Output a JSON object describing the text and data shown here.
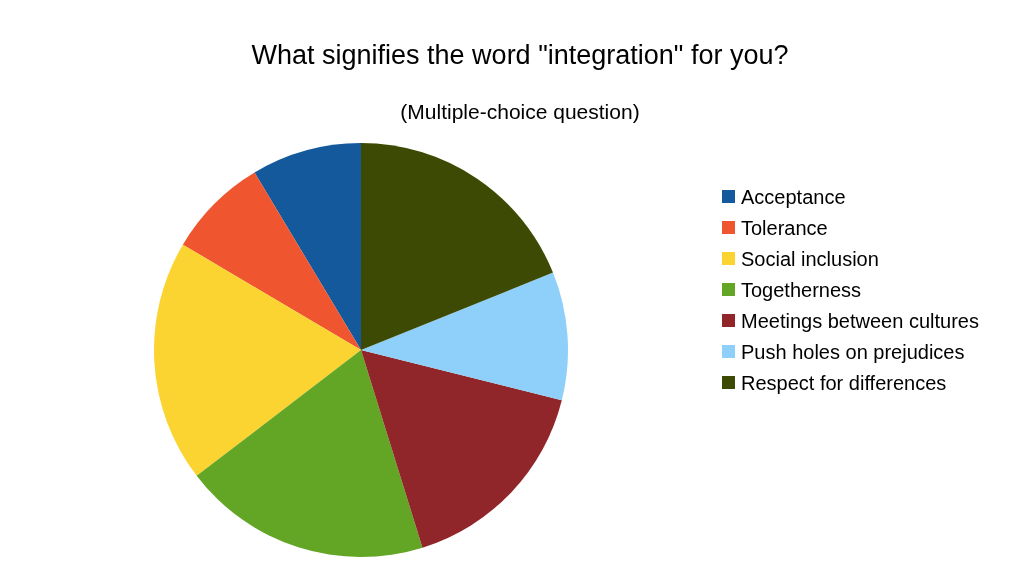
{
  "chart_data": {
    "type": "pie",
    "title": "What signifies the word \"integration\" for you?",
    "subtitle": "(Multiple-choice question)",
    "categories": [
      "Acceptance",
      "Tolerance",
      "Social inclusion",
      "Togetherness",
      "Meetings between cultures",
      "Push holes on prejudices",
      "Respect for differences"
    ],
    "values": [
      8.6,
      7.9,
      18.9,
      19.4,
      16.3,
      10.0,
      18.9
    ],
    "colors": [
      "#13599b",
      "#ef5630",
      "#fcd431",
      "#63a626",
      "#91262a",
      "#8ed0f9",
      "#3c4a03"
    ],
    "legend": "right"
  }
}
